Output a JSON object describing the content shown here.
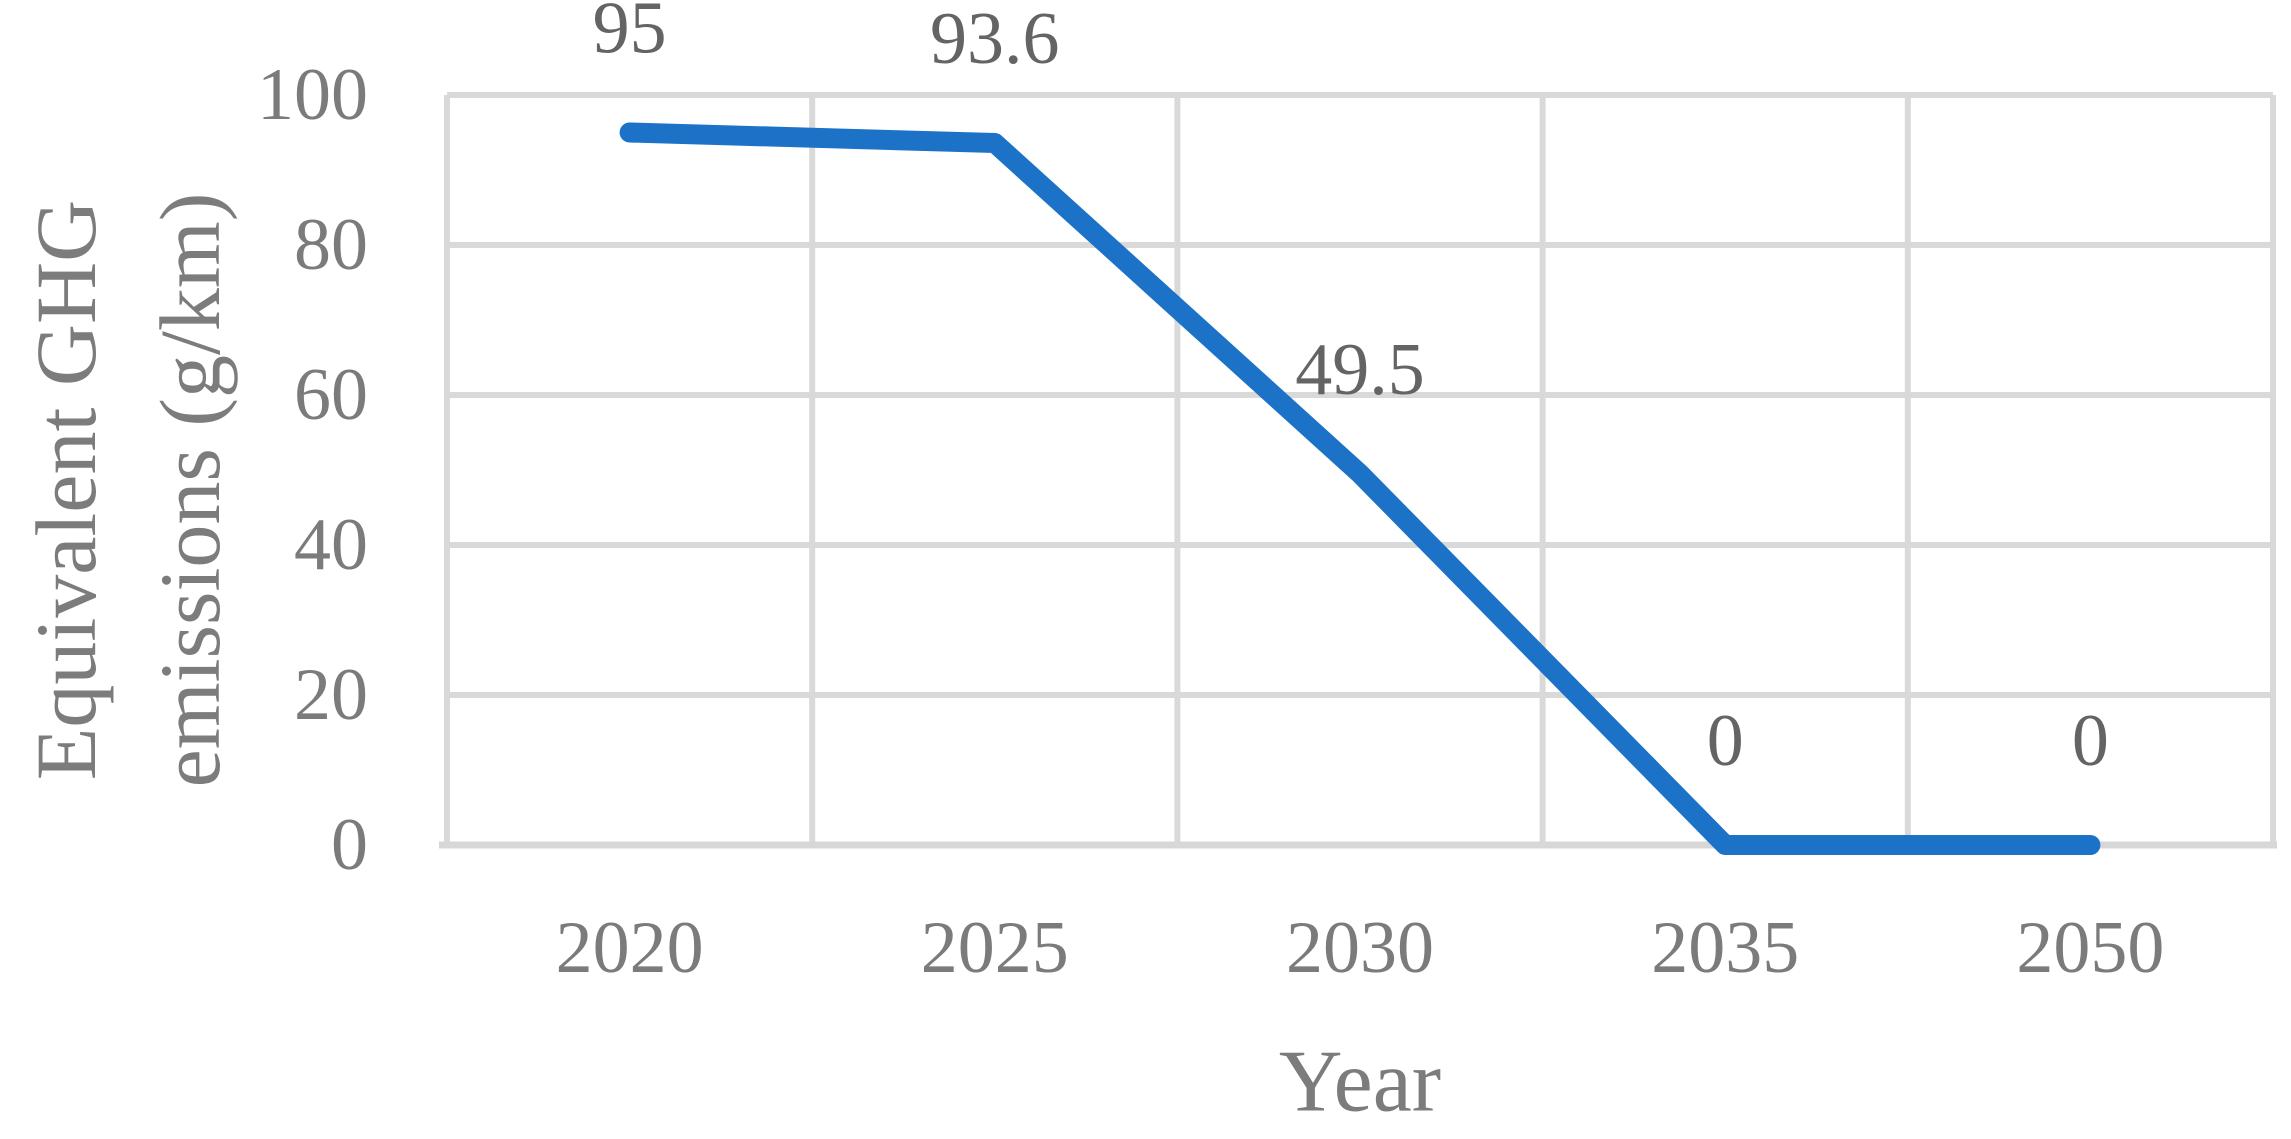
{
  "figure": {
    "background_color": "#FFFFFF"
  },
  "chart_data": {
    "type": "line",
    "title": "",
    "xlabel": "Year",
    "ylabel": "Equivalent GHG emissions (g/km)",
    "ylabel_lines": [
      "Equivalent GHG",
      "emissions (g/km)"
    ],
    "categories": [
      "2020",
      "2025",
      "2030",
      "2035",
      "2050"
    ],
    "series": [
      {
        "name": "Equivalent GHG emissions (g/km)",
        "values": [
          95,
          93.6,
          49.5,
          0,
          0
        ],
        "data_labels": [
          "95",
          "93.6",
          "49.5",
          "0",
          "0"
        ],
        "color": "#1C72C7"
      }
    ],
    "ylim": [
      0,
      100
    ],
    "yticks": [
      0,
      20,
      40,
      60,
      80,
      100
    ],
    "ytick_labels": [
      "0",
      "20",
      "40",
      "60",
      "80",
      "100"
    ],
    "grid": {
      "horizontal": true,
      "vertical": true,
      "color": "#D9D9D9",
      "vertical_position": "category-boundaries"
    },
    "legend_position": "none",
    "data_label_position": "above",
    "colors": {
      "line": "#1C72C7",
      "gridline": "#D9D9D9",
      "axis_line": "#D7D7D7",
      "tick_text": "#7B7B7B",
      "data_label_text": "#646464",
      "axis_title_text": "#7C7C7C"
    }
  }
}
